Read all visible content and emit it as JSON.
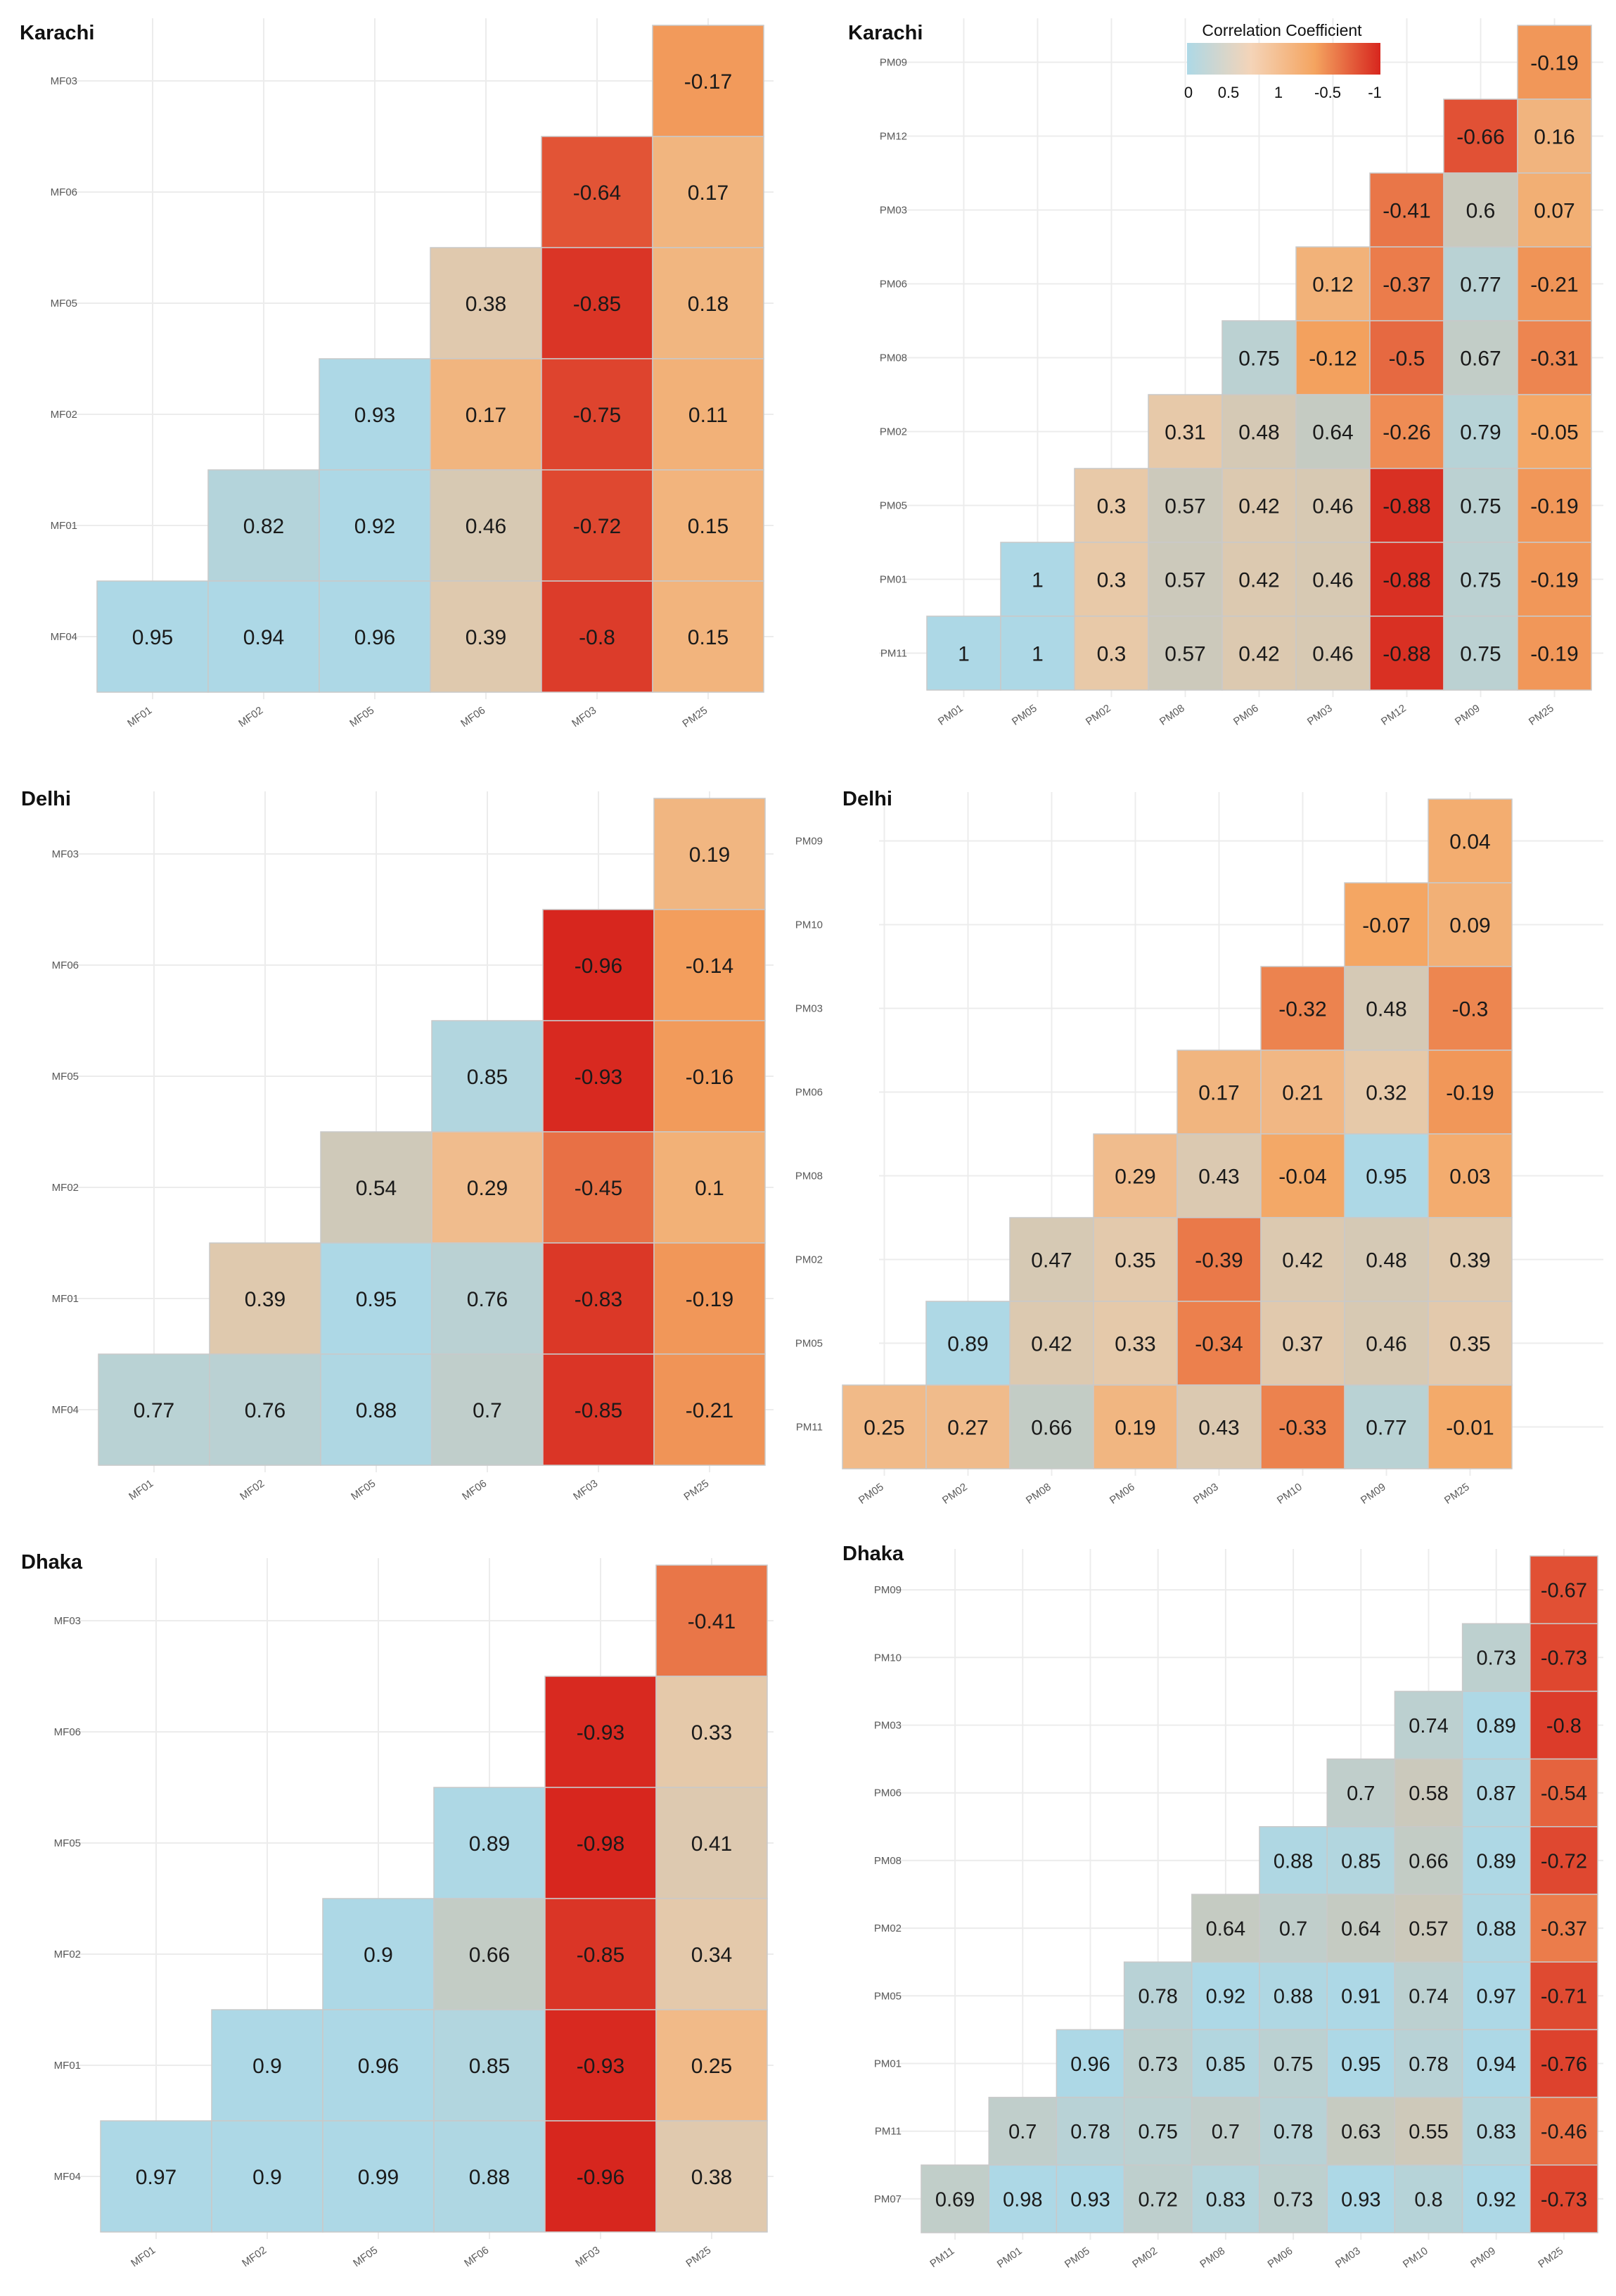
{
  "colors": {
    "low": "#add8e6",
    "mid": "#c9c9bd",
    "orange": "#f4a460",
    "high": "#d7261e",
    "grid": "#ececec",
    "cell_border": "#c9c9c9"
  },
  "legend": {
    "title": "Correlation Coefficient",
    "ticks": [
      "0",
      "0.5",
      "1",
      "-0.5",
      "-1"
    ]
  },
  "chart_data": [
    {
      "type": "heatmap",
      "title": "Karachi",
      "rows": [
        "MF03",
        "MF06",
        "MF05",
        "MF02",
        "MF01",
        "MF04"
      ],
      "columns": [
        "MF01",
        "MF02",
        "MF05",
        "MF06",
        "MF03",
        "PM25"
      ],
      "cells": [
        [
          null,
          null,
          null,
          null,
          null,
          -0.17
        ],
        [
          null,
          null,
          null,
          null,
          -0.64,
          0.17
        ],
        [
          null,
          null,
          null,
          0.38,
          -0.85,
          0.18
        ],
        [
          null,
          null,
          0.93,
          0.17,
          -0.75,
          0.11
        ],
        [
          null,
          0.82,
          0.92,
          0.46,
          -0.72,
          0.15
        ],
        [
          0.95,
          0.94,
          0.96,
          0.39,
          -0.8,
          0.15
        ]
      ]
    },
    {
      "type": "heatmap",
      "title": "Karachi",
      "rows": [
        "PM09",
        "PM12",
        "PM03",
        "PM06",
        "PM08",
        "PM02",
        "PM05",
        "PM01",
        "PM11"
      ],
      "columns": [
        "PM01",
        "PM05",
        "PM02",
        "PM08",
        "PM06",
        "PM03",
        "PM12",
        "PM09",
        "PM25"
      ],
      "cells": [
        [
          null,
          null,
          null,
          null,
          null,
          null,
          null,
          null,
          -0.19
        ],
        [
          null,
          null,
          null,
          null,
          null,
          null,
          null,
          -0.66,
          0.16
        ],
        [
          null,
          null,
          null,
          null,
          null,
          null,
          -0.41,
          0.6,
          0.07
        ],
        [
          null,
          null,
          null,
          null,
          null,
          0.12,
          -0.37,
          0.77,
          -0.21
        ],
        [
          null,
          null,
          null,
          null,
          0.75,
          -0.12,
          -0.5,
          0.67,
          -0.31
        ],
        [
          null,
          null,
          null,
          0.31,
          0.48,
          0.64,
          -0.26,
          0.79,
          -0.05
        ],
        [
          null,
          null,
          0.3,
          0.57,
          0.42,
          0.46,
          -0.88,
          0.75,
          -0.19
        ],
        [
          null,
          1,
          0.3,
          0.57,
          0.42,
          0.46,
          -0.88,
          0.75,
          -0.19
        ],
        [
          1,
          1,
          0.3,
          0.57,
          0.42,
          0.46,
          -0.88,
          0.75,
          -0.19
        ]
      ]
    },
    {
      "type": "heatmap",
      "title": "Delhi",
      "rows": [
        "MF03",
        "MF06",
        "MF05",
        "MF02",
        "MF01",
        "MF04"
      ],
      "columns": [
        "MF01",
        "MF02",
        "MF05",
        "MF06",
        "MF03",
        "PM25"
      ],
      "cells": [
        [
          null,
          null,
          null,
          null,
          null,
          0.19
        ],
        [
          null,
          null,
          null,
          null,
          -0.96,
          -0.14
        ],
        [
          null,
          null,
          null,
          0.85,
          -0.93,
          -0.16
        ],
        [
          null,
          null,
          0.54,
          0.29,
          -0.45,
          0.1
        ],
        [
          null,
          0.39,
          0.95,
          0.76,
          -0.83,
          -0.19
        ],
        [
          0.77,
          0.76,
          0.88,
          0.7,
          -0.85,
          -0.21
        ]
      ]
    },
    {
      "type": "heatmap",
      "title": "Delhi",
      "rows": [
        "PM09",
        "PM10",
        "PM03",
        "PM06",
        "PM08",
        "PM02",
        "PM05",
        "PM11"
      ],
      "columns": [
        "PM05",
        "PM02",
        "PM08",
        "PM06",
        "PM03",
        "PM10",
        "PM09",
        "PM25"
      ],
      "cells": [
        [
          null,
          null,
          null,
          null,
          null,
          null,
          null,
          0.04
        ],
        [
          null,
          null,
          null,
          null,
          null,
          null,
          -0.07,
          0.09
        ],
        [
          null,
          null,
          null,
          null,
          null,
          -0.32,
          0.48,
          -0.3
        ],
        [
          null,
          null,
          null,
          null,
          0.17,
          0.21,
          0.32,
          -0.19
        ],
        [
          null,
          null,
          null,
          0.29,
          0.43,
          -0.04,
          0.95,
          0.03
        ],
        [
          null,
          null,
          0.47,
          0.35,
          -0.39,
          0.42,
          0.48,
          0.39
        ],
        [
          null,
          0.89,
          0.42,
          0.33,
          -0.34,
          0.37,
          0.46,
          0.35
        ],
        [
          0.25,
          0.27,
          0.66,
          0.19,
          0.43,
          -0.33,
          0.77,
          -0.01
        ]
      ]
    },
    {
      "type": "heatmap",
      "title": "Dhaka",
      "rows": [
        "MF03",
        "MF06",
        "MF05",
        "MF02",
        "MF01",
        "MF04"
      ],
      "columns": [
        "MF01",
        "MF02",
        "MF05",
        "MF06",
        "MF03",
        "PM25"
      ],
      "cells": [
        [
          null,
          null,
          null,
          null,
          null,
          -0.41
        ],
        [
          null,
          null,
          null,
          null,
          -0.93,
          0.33
        ],
        [
          null,
          null,
          null,
          0.89,
          -0.98,
          0.41
        ],
        [
          null,
          null,
          0.9,
          0.66,
          -0.85,
          0.34
        ],
        [
          null,
          0.9,
          0.96,
          0.85,
          -0.93,
          0.25
        ],
        [
          0.97,
          0.9,
          0.99,
          0.88,
          -0.96,
          0.38
        ]
      ]
    },
    {
      "type": "heatmap",
      "title": "Dhaka",
      "rows": [
        "PM09",
        "PM10",
        "PM03",
        "PM06",
        "PM08",
        "PM02",
        "PM05",
        "PM01",
        "PM11",
        "PM07"
      ],
      "columns": [
        "PM11",
        "PM01",
        "PM05",
        "PM02",
        "PM08",
        "PM06",
        "PM03",
        "PM10",
        "PM09",
        "PM25"
      ],
      "cells": [
        [
          null,
          null,
          null,
          null,
          null,
          null,
          null,
          null,
          null,
          -0.67
        ],
        [
          null,
          null,
          null,
          null,
          null,
          null,
          null,
          null,
          0.73,
          -0.73
        ],
        [
          null,
          null,
          null,
          null,
          null,
          null,
          null,
          0.74,
          0.89,
          -0.8
        ],
        [
          null,
          null,
          null,
          null,
          null,
          null,
          0.7,
          0.58,
          0.87,
          -0.54
        ],
        [
          null,
          null,
          null,
          null,
          null,
          0.88,
          0.85,
          0.66,
          0.89,
          -0.72
        ],
        [
          null,
          null,
          null,
          null,
          0.64,
          0.7,
          0.64,
          0.57,
          0.88,
          -0.37
        ],
        [
          null,
          null,
          null,
          0.78,
          0.92,
          0.88,
          0.91,
          0.74,
          0.97,
          -0.71
        ],
        [
          null,
          null,
          0.96,
          0.73,
          0.85,
          0.75,
          0.95,
          0.78,
          0.94,
          -0.76
        ],
        [
          null,
          0.7,
          0.78,
          0.75,
          0.7,
          0.78,
          0.63,
          0.55,
          0.83,
          -0.46
        ],
        [
          0.69,
          0.98,
          0.93,
          0.72,
          0.83,
          0.73,
          0.93,
          0.8,
          0.92,
          -0.73
        ]
      ]
    }
  ]
}
